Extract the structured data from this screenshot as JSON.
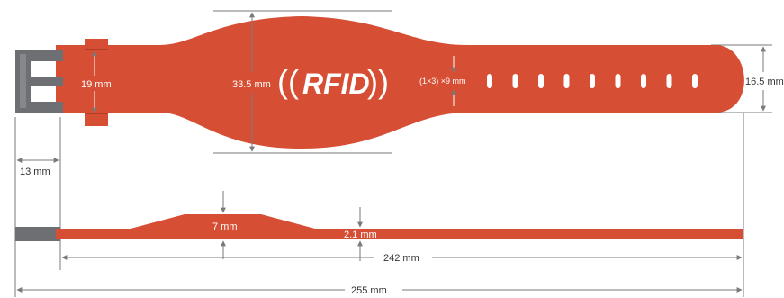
{
  "colors": {
    "band": "#d64e33",
    "band_edge": "#b23d27",
    "buckle": "#6d6f73",
    "dim_line": "#7a7a7a",
    "text_dark": "#333333",
    "text_light": "#ffffff",
    "keeper_line": "#8a2e1f"
  },
  "logo": {
    "text": "RFID",
    "left_waves": "((",
    "right_waves": "))"
  },
  "dimensions": {
    "keeper_width": "19 mm",
    "head_width": "33.5 mm",
    "hole_spec": "(1×3) ×9 mm",
    "strap_width": "16.5 mm",
    "buckle_width": "13 mm",
    "head_thickness": "7 mm",
    "strap_thickness": "2.1 mm",
    "strap_length": "242 mm",
    "total_length": "255 mm"
  },
  "holes": {
    "count": 9
  }
}
